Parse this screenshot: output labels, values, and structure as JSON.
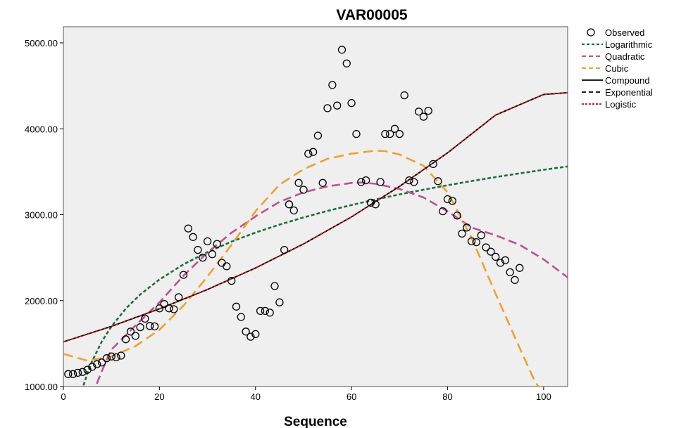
{
  "chart_data": {
    "type": "scatter",
    "title": "VAR00005",
    "xlabel": "Sequence",
    "ylabel": "",
    "xlim": [
      0,
      105
    ],
    "ylim": [
      1000,
      5200
    ],
    "x_ticks": [
      "0",
      "20",
      "40",
      "60",
      "80",
      "100"
    ],
    "y_ticks": [
      "1000.00",
      "2000.00",
      "3000.00",
      "4000.00",
      "5000.00"
    ],
    "grid": false,
    "legend_position": "right",
    "colors": {
      "background": "#efefef",
      "observed": "#000000",
      "logarithmic": "#1d6f3a",
      "quadratic": "#c0508e",
      "cubic": "#f0a030",
      "compound": "#000000",
      "exponential": "#000000",
      "logistic": "#d02020"
    },
    "legend": [
      {
        "key": "observed",
        "label": "Observed"
      },
      {
        "key": "logarithmic",
        "label": "Logarithmic"
      },
      {
        "key": "quadratic",
        "label": "Quadratic"
      },
      {
        "key": "cubic",
        "label": "Cubic"
      },
      {
        "key": "compound",
        "label": "Compound"
      },
      {
        "key": "exponential",
        "label": "Exponential"
      },
      {
        "key": "logistic",
        "label": "Logistic"
      }
    ],
    "observed": {
      "x": [
        1,
        2,
        3,
        4,
        5,
        6,
        7,
        8,
        9,
        10,
        11,
        12,
        13,
        14,
        15,
        16,
        17,
        18,
        19,
        20,
        21,
        22,
        23,
        24,
        25,
        26,
        27,
        28,
        29,
        30,
        31,
        32,
        33,
        34,
        35,
        36,
        37,
        38,
        39,
        40,
        41,
        42,
        43,
        44,
        45,
        46,
        47,
        48,
        49,
        50,
        51,
        52,
        53,
        54,
        55,
        56,
        57,
        58,
        59,
        60,
        61,
        62,
        63,
        64,
        65,
        66,
        67,
        68,
        69,
        70,
        71,
        72,
        73,
        74,
        75,
        76,
        77,
        78,
        79,
        80,
        81,
        82,
        83,
        84,
        85,
        86,
        87,
        88,
        89,
        90,
        91,
        92,
        93,
        94,
        95
      ],
      "y": [
        1145,
        1145,
        1160,
        1170,
        1195,
        1230,
        1260,
        1280,
        1330,
        1350,
        1340,
        1360,
        1550,
        1640,
        1590,
        1690,
        1790,
        1705,
        1700,
        1910,
        1960,
        1910,
        1900,
        2040,
        2300,
        2840,
        2740,
        2590,
        2500,
        2690,
        2540,
        2660,
        2440,
        2400,
        2230,
        1930,
        1810,
        1640,
        1580,
        1610,
        1880,
        1880,
        1860,
        2170,
        1980,
        2590,
        3120,
        3050,
        3370,
        3290,
        3710,
        3730,
        3920,
        3370,
        4240,
        4510,
        4270,
        4920,
        4760,
        4300,
        3940,
        3380,
        3400,
        3140,
        3120,
        3380,
        3940,
        3940,
        4000,
        3940,
        4390,
        3400,
        3380,
        4200,
        4140,
        4210,
        3590,
        3390,
        3040,
        3180,
        3160,
        2990,
        2780,
        2850,
        2690,
        2680,
        2760,
        2620,
        2570,
        2510,
        2440,
        2470,
        2330,
        2240,
        2380
      ]
    },
    "curves": {
      "logarithmic": {
        "x": [
          3,
          4,
          5,
          6,
          8,
          10,
          13,
          16,
          20,
          25,
          30,
          35,
          40,
          45,
          50,
          55,
          60,
          65,
          70,
          75,
          80,
          85,
          90,
          95,
          100,
          105
        ],
        "y": [
          760,
          980,
          1155,
          1298,
          1524,
          1699,
          1906,
          2071,
          2246,
          2422,
          2565,
          2687,
          2792,
          2885,
          2968,
          3044,
          3113,
          3177,
          3236,
          3291,
          3343,
          3392,
          3438,
          3481,
          3523,
          3562
        ]
      },
      "quadratic": {
        "x": [
          5,
          8,
          10,
          15,
          20,
          25,
          30,
          35,
          40,
          45,
          50,
          55,
          60,
          62,
          65,
          70,
          75,
          80,
          85,
          90,
          95,
          100,
          105
        ],
        "y": [
          760,
          1180,
          1430,
          1710,
          1980,
          2290,
          2560,
          2790,
          2980,
          3150,
          3260,
          3330,
          3370,
          3375,
          3360,
          3300,
          3200,
          3040,
          2850,
          2760,
          2650,
          2480,
          2270
        ]
      },
      "cubic": {
        "x": [
          0,
          5,
          10,
          15,
          20,
          25,
          30,
          35,
          40,
          45,
          50,
          55,
          60,
          65,
          67,
          70,
          75,
          80,
          85,
          90,
          95,
          98,
          100,
          102
        ],
        "y": [
          1380,
          1300,
          1350,
          1470,
          1660,
          1940,
          2280,
          2650,
          3040,
          3350,
          3530,
          3650,
          3710,
          3745,
          3740,
          3700,
          3570,
          3260,
          2730,
          2080,
          1450,
          1080,
          900,
          700
        ]
      },
      "compound": {
        "x": [
          0,
          10,
          20,
          30,
          40,
          50,
          60,
          70,
          80,
          90,
          100,
          105
        ],
        "y": [
          1520,
          1700,
          1905,
          2130,
          2380,
          2660,
          2975,
          3330,
          3720,
          4160,
          4400,
          4420
        ]
      },
      "exponential": {
        "x": [
          0,
          10,
          20,
          30,
          40,
          50,
          60,
          70,
          80,
          90,
          100,
          105
        ],
        "y": [
          1520,
          1700,
          1905,
          2130,
          2380,
          2660,
          2975,
          3330,
          3720,
          4160,
          4400,
          4420
        ]
      },
      "logistic": {
        "x": [
          0,
          10,
          20,
          30,
          40,
          50,
          60,
          70,
          80,
          90,
          100,
          105
        ],
        "y": [
          1520,
          1700,
          1905,
          2130,
          2380,
          2660,
          2975,
          3330,
          3720,
          4160,
          4400,
          4420
        ]
      }
    }
  }
}
